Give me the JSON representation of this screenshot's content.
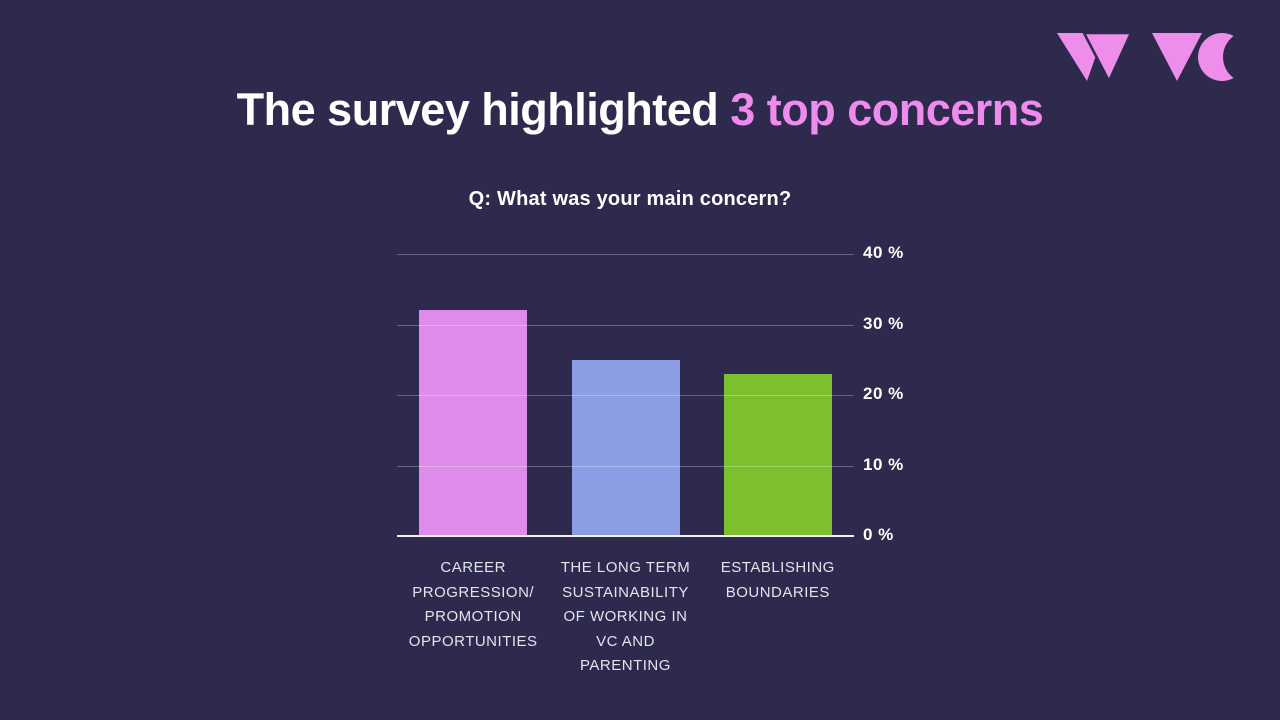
{
  "slide": {
    "title": {
      "prefix": "The survey highlighted ",
      "highlight": "3 top concerns"
    },
    "logo": {
      "alt": "WVC logo"
    }
  },
  "colors": {
    "background": "#2d2a4e",
    "title_white": "#ffffff",
    "accent_pink": "#ee8bec",
    "logo_pink": "#ee8dea",
    "label_text": "#e4e4ee",
    "gridline": "rgba(255,255,255,0.28)",
    "baseline": "#f2f2f6"
  },
  "chart_data": {
    "type": "bar",
    "title": "Q: What was your main concern?",
    "categories": [
      "CAREER\nPROGRESSION/\nPROMOTION\nOPPORTUNITIES",
      "THE LONG TERM\nSUSTAINABILITY\nOF WORKING IN\nVC AND\nPARENTING",
      "ESTABLISHING\nBOUNDARIES"
    ],
    "values": [
      32,
      25,
      23
    ],
    "unit": "%",
    "bar_colors": [
      "#de8ce9",
      "#8a9de5",
      "#7cc02f"
    ],
    "ylim": [
      0,
      40
    ],
    "yticks": [
      {
        "value": 0,
        "label": "0 %"
      },
      {
        "value": 10,
        "label": "10 %"
      },
      {
        "value": 20,
        "label": "20 %"
      },
      {
        "value": 30,
        "label": "30 %"
      },
      {
        "value": 40,
        "label": "40 %"
      }
    ],
    "grid": true,
    "tick_side": "right",
    "legend": null
  }
}
